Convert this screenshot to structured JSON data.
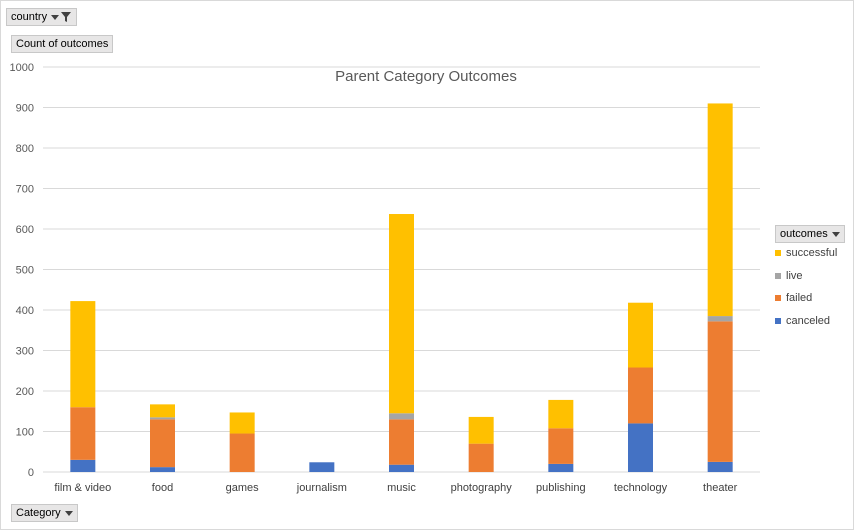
{
  "filters": {
    "country_label": "country",
    "category_label": "Category",
    "outcomes_label": "outcomes"
  },
  "value_field_label": "Count of outcomes",
  "colors": {
    "canceled": "#4472c4",
    "failed": "#ed7d31",
    "live": "#a5a5a5",
    "successful": "#ffc000",
    "grid": "#d9d9d9"
  },
  "chart_data": {
    "type": "bar",
    "stacked": true,
    "title": "Parent Category Outcomes",
    "xlabel": "",
    "ylabel": "",
    "ylim": [
      0,
      1000
    ],
    "ytick_step": 100,
    "grid": true,
    "legend_position": "right",
    "categories": [
      "film & video",
      "food",
      "games",
      "journalism",
      "music",
      "photography",
      "publishing",
      "technology",
      "theater"
    ],
    "series": [
      {
        "name": "canceled",
        "values": [
          30,
          12,
          0,
          24,
          18,
          0,
          20,
          120,
          25
        ]
      },
      {
        "name": "failed",
        "values": [
          130,
          118,
          95,
          0,
          112,
          70,
          88,
          138,
          347
        ]
      },
      {
        "name": "live",
        "values": [
          0,
          5,
          0,
          0,
          15,
          0,
          0,
          0,
          13
        ]
      },
      {
        "name": "successful",
        "values": [
          262,
          32,
          52,
          0,
          492,
          66,
          70,
          160,
          525
        ]
      }
    ]
  }
}
